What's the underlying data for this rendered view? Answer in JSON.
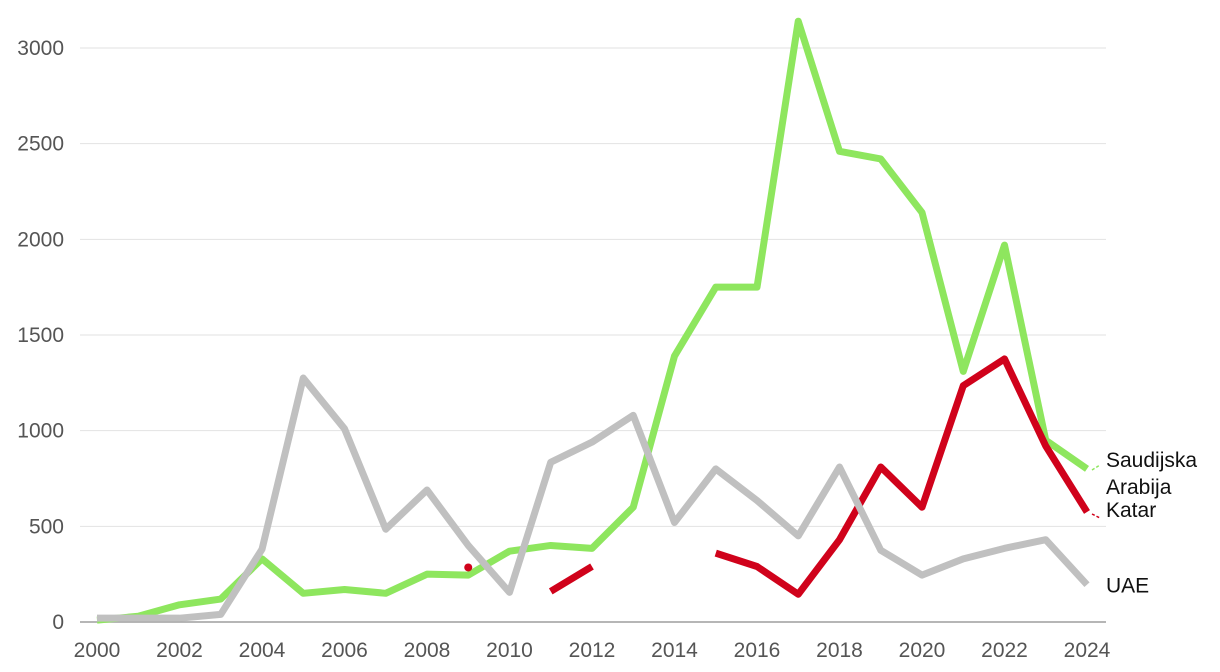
{
  "chart_data": {
    "type": "line",
    "title": "",
    "xlabel": "",
    "ylabel": "",
    "x": [
      2000,
      2001,
      2002,
      2003,
      2004,
      2005,
      2006,
      2007,
      2008,
      2009,
      2010,
      2011,
      2012,
      2013,
      2014,
      2015,
      2016,
      2017,
      2018,
      2019,
      2020,
      2021,
      2022,
      2023,
      2024
    ],
    "xlim": [
      2000,
      2024
    ],
    "ylim": [
      0,
      3000
    ],
    "x_ticks": [
      "2000",
      "2002",
      "2004",
      "2006",
      "2008",
      "2010",
      "2012",
      "2014",
      "2016",
      "2018",
      "2020",
      "2022",
      "2024"
    ],
    "y_ticks": [
      "0",
      "500",
      "1000",
      "1500",
      "2000",
      "2500",
      "3000"
    ],
    "grid": "horizontal",
    "legend": "inline labels at right end of lines",
    "series": [
      {
        "name": "Saudijska Arabija",
        "label_lines": [
          "Saudijska",
          "Arabija"
        ],
        "color": "#8ee65e",
        "values": [
          10,
          30,
          90,
          120,
          330,
          150,
          170,
          150,
          250,
          245,
          370,
          400,
          385,
          600,
          1390,
          1750,
          1750,
          3140,
          2460,
          2420,
          2140,
          1310,
          1970,
          950,
          800
        ]
      },
      {
        "name": "Katar",
        "label_lines": [
          "Katar"
        ],
        "color": "#d0021b",
        "values": [
          null,
          null,
          null,
          null,
          null,
          null,
          null,
          null,
          null,
          285,
          null,
          160,
          290,
          null,
          null,
          360,
          290,
          145,
          430,
          810,
          600,
          1235,
          1375,
          920,
          575
        ]
      },
      {
        "name": "UAE",
        "label_lines": [
          "UAE"
        ],
        "color": "#c0c0c0",
        "values": [
          20,
          20,
          20,
          40,
          380,
          1275,
          1010,
          485,
          690,
          400,
          155,
          835,
          940,
          1080,
          520,
          800,
          635,
          450,
          810,
          375,
          245,
          330,
          385,
          430,
          195
        ]
      }
    ]
  }
}
